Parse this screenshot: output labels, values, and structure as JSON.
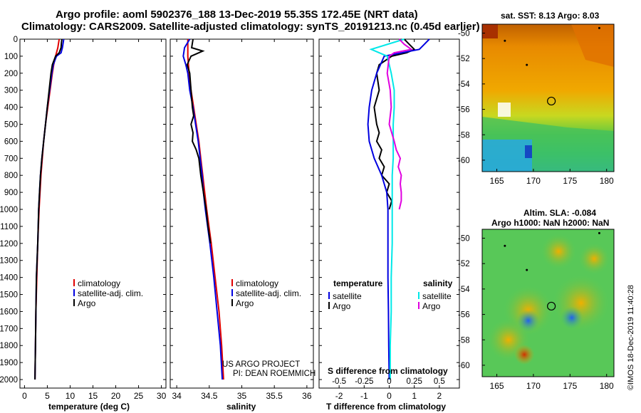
{
  "header": {
    "line1": "Argo profile: aoml 5902376_188 13-Dec-2019 55.35S 172.45E (NRT data)",
    "line2": "Climatology: CARS2009. Satellite-adjusted climatology: synTS_20191213.nc (0.45d earlier)"
  },
  "colors": {
    "climatology": "#e00000",
    "satellite": "#0000e0",
    "argo": "#000000",
    "sat_salinity": "#00e8e8",
    "argo_salinity": "#e000e0"
  },
  "chart_data": [
    {
      "type": "line",
      "panel": "temperature",
      "xlabel": "temperature (deg C)",
      "xlim": [
        -1,
        31
      ],
      "xticks": [
        "0",
        "5",
        "10",
        "15",
        "20",
        "25",
        "30"
      ],
      "ylim": [
        0,
        2050
      ],
      "yticks": [
        "0",
        "100",
        "200",
        "300",
        "400",
        "500",
        "600",
        "700",
        "800",
        "900",
        "1000",
        "1100",
        "1200",
        "1300",
        "1400",
        "1500",
        "1600",
        "1700",
        "1800",
        "1900",
        "2000"
      ],
      "series": [
        {
          "name": "climatology",
          "depth": [
            0,
            50,
            100,
            150,
            200,
            300,
            400,
            500,
            600,
            700,
            800,
            900,
            1000,
            1200,
            1400,
            1600,
            1800,
            2000
          ],
          "values": [
            7.6,
            7.3,
            6.8,
            6.4,
            6.1,
            5.6,
            5.1,
            4.6,
            4.2,
            3.9,
            3.6,
            3.4,
            3.2,
            2.9,
            2.7,
            2.5,
            2.4,
            2.3
          ]
        },
        {
          "name": "satellite-adj. clim.",
          "depth": [
            0,
            50,
            80,
            100,
            150,
            200,
            300,
            400,
            500,
            600,
            700,
            800,
            900,
            1000,
            1200,
            1400,
            1600,
            1800,
            2000
          ],
          "values": [
            8.6,
            8.3,
            8.0,
            7.0,
            6.3,
            6.0,
            5.5,
            5.0,
            4.6,
            4.2,
            3.8,
            3.5,
            3.3,
            3.1,
            2.9,
            2.6,
            2.5,
            2.4,
            2.3
          ]
        },
        {
          "name": "Argo",
          "depth": [
            0,
            20,
            50,
            80,
            100,
            150,
            200,
            300,
            400,
            500,
            600,
            700,
            800,
            900,
            1000,
            1200,
            1400,
            1600,
            1800,
            2000
          ],
          "values": [
            8.2,
            8.1,
            8.0,
            7.6,
            6.8,
            6.1,
            5.8,
            5.4,
            5.0,
            4.6,
            4.2,
            3.8,
            3.5,
            3.3,
            3.1,
            2.9,
            2.6,
            2.5,
            2.4,
            2.3
          ]
        }
      ],
      "legend": [
        "climatology",
        "satellite-adj. clim.",
        "Argo"
      ]
    },
    {
      "type": "line",
      "panel": "salinity",
      "xlabel": "salinity",
      "xlim": [
        33.9,
        36.1
      ],
      "xticks": [
        "34",
        "34.5",
        "35",
        "35.5",
        "36"
      ],
      "ylim": [
        0,
        2050
      ],
      "series": [
        {
          "name": "climatology",
          "depth": [
            0,
            100,
            200,
            300,
            400,
            500,
            600,
            700,
            800,
            900,
            1000,
            1200,
            1400,
            1600,
            1800,
            2000
          ],
          "values": [
            34.17,
            34.17,
            34.19,
            34.22,
            34.26,
            34.3,
            34.34,
            34.37,
            34.4,
            34.43,
            34.46,
            34.53,
            34.59,
            34.65,
            34.69,
            34.72
          ]
        },
        {
          "name": "satellite-adj. clim.",
          "depth": [
            0,
            50,
            100,
            150,
            200,
            300,
            400,
            500,
            600,
            700,
            800,
            900,
            1000,
            1200,
            1400,
            1600,
            1800,
            2000
          ],
          "values": [
            34.2,
            34.12,
            34.1,
            34.14,
            34.17,
            34.2,
            34.25,
            34.29,
            34.33,
            34.36,
            34.39,
            34.41,
            34.44,
            34.51,
            34.57,
            34.62,
            34.67,
            34.7
          ]
        },
        {
          "name": "Argo",
          "depth": [
            0,
            50,
            70,
            100,
            150,
            200,
            300,
            400,
            450,
            500,
            550,
            600,
            650,
            700,
            800,
            900,
            1000,
            1100,
            1200
          ],
          "values": [
            34.25,
            34.23,
            34.4,
            34.22,
            34.16,
            34.2,
            34.22,
            34.24,
            34.26,
            34.22,
            34.25,
            34.24,
            34.3,
            34.34,
            34.37,
            34.41,
            34.45,
            34.48,
            34.52
          ]
        }
      ],
      "legend": [
        "climatology",
        "satellite-adj. clim.",
        "Argo"
      ],
      "annotation": [
        "US ARGO PROJECT",
        "PI: DEAN ROEMMICH"
      ]
    },
    {
      "type": "line",
      "panel": "difference",
      "xlabel": "T difference from climatology",
      "top_label": "S difference from climatology",
      "xlim": [
        -2.8,
        2.8
      ],
      "xticks": [
        "-2",
        "-1",
        "0",
        "1",
        "2"
      ],
      "top_ticks": [
        "-0.5",
        "-0.25",
        "0",
        "0.25",
        "0.5"
      ],
      "ylim": [
        0,
        2050
      ],
      "series": [
        {
          "name": "temperature Argo",
          "depth": [
            0,
            30,
            60,
            80,
            100,
            150,
            200,
            300,
            400,
            500,
            550,
            600,
            650,
            700,
            750,
            800,
            850,
            900,
            950,
            1000
          ],
          "values": [
            0.6,
            0.8,
            1.0,
            0.7,
            0.1,
            -0.4,
            -0.5,
            -0.4,
            -0.6,
            -0.5,
            -0.4,
            -0.5,
            -0.3,
            -0.4,
            -0.2,
            -0.3,
            0.0,
            -0.1,
            0.1,
            0.0
          ]
        },
        {
          "name": "temperature satellite",
          "depth": [
            0,
            30,
            60,
            100,
            200,
            300,
            400,
            500,
            600,
            700,
            800,
            900,
            1000,
            1200,
            1400,
            1600,
            1800,
            2000
          ],
          "values": [
            1.6,
            1.4,
            1.2,
            -0.2,
            -0.5,
            -0.7,
            -0.8,
            -0.85,
            -0.8,
            -0.6,
            -0.3,
            -0.1,
            -0.05,
            -0.05,
            -0.05,
            -0.03,
            -0.02,
            0.0
          ]
        },
        {
          "name": "salinity satellite",
          "depth": [
            0,
            60,
            100,
            150,
            200,
            300,
            400,
            500,
            600,
            700,
            800,
            900,
            1000,
            1200,
            1400,
            1600,
            1800,
            2000
          ],
          "values": [
            0.15,
            -0.18,
            -0.02,
            0.0,
            0.02,
            0.05,
            0.05,
            0.04,
            0.04,
            0.04,
            0.03,
            0.03,
            0.03,
            0.03,
            0.02,
            0.02,
            0.01,
            0.01
          ]
        },
        {
          "name": "salinity Argo",
          "depth": [
            0,
            30,
            60,
            80,
            100,
            200,
            300,
            400,
            500,
            600,
            650,
            700,
            750,
            800,
            850,
            900,
            950,
            1000
          ],
          "values": [
            0.1,
            0.15,
            0.22,
            0.05,
            0.0,
            -0.02,
            0.01,
            0.02,
            0.0,
            0.05,
            0.07,
            0.11,
            0.09,
            0.12,
            0.11,
            0.12,
            0.12,
            0.1
          ]
        }
      ],
      "legend_left_title": "temperature",
      "legend_right_title": "salinity",
      "legend_left": [
        "satellite",
        "Argo"
      ],
      "legend_right": [
        "satellite",
        "Argo"
      ]
    },
    {
      "type": "heatmap",
      "panel": "sst map",
      "title": "sat. SST: 8.13 Argo: 8.03",
      "xlim": [
        163,
        181
      ],
      "ylim": [
        -60.9,
        -49.3
      ],
      "xticks": [
        "165",
        "170",
        "175",
        "180"
      ],
      "yticks": [
        "-50",
        "-52",
        "-54",
        "-56",
        "-58",
        "-60"
      ],
      "profile_location": [
        172.45,
        -55.35
      ]
    },
    {
      "type": "heatmap",
      "panel": "sla map",
      "title": "Altim. SLA: -0.084",
      "subtitle": "Argo h1000: NaN h2000: NaN",
      "xlim": [
        163,
        181
      ],
      "ylim": [
        -60.9,
        -49.3
      ],
      "xticks": [
        "165",
        "170",
        "175",
        "180"
      ],
      "yticks": [
        "-50",
        "-52",
        "-54",
        "-56",
        "-58",
        "-60"
      ],
      "profile_location": [
        172.45,
        -55.35
      ]
    }
  ],
  "footer": {
    "credit": "©IMOS 18-Dec-2019 11:40:28"
  }
}
